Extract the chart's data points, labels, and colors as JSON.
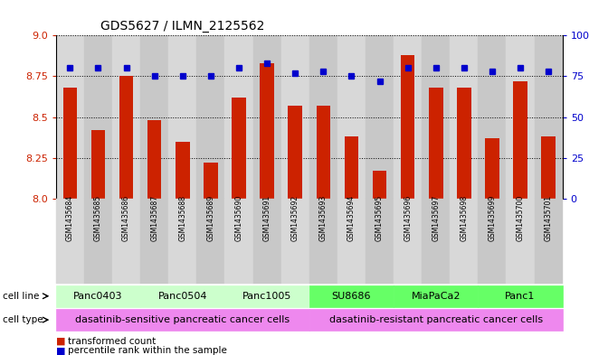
{
  "title": "GDS5627 / ILMN_2125562",
  "samples": [
    "GSM1435684",
    "GSM1435685",
    "GSM1435686",
    "GSM1435687",
    "GSM1435688",
    "GSM1435689",
    "GSM1435690",
    "GSM1435691",
    "GSM1435692",
    "GSM1435693",
    "GSM1435694",
    "GSM1435695",
    "GSM1435696",
    "GSM1435697",
    "GSM1435698",
    "GSM1435699",
    "GSM1435700",
    "GSM1435701"
  ],
  "transformed_counts": [
    8.68,
    8.42,
    8.75,
    8.48,
    8.35,
    8.22,
    8.62,
    8.83,
    8.57,
    8.57,
    8.38,
    8.17,
    8.88,
    8.68,
    8.68,
    8.37,
    8.72,
    8.38
  ],
  "percentile_ranks": [
    80,
    80,
    80,
    75,
    75,
    75,
    80,
    83,
    77,
    78,
    75,
    72,
    80,
    80,
    80,
    78,
    80,
    78
  ],
  "cell_lines": [
    {
      "name": "Panc0403",
      "start": 0,
      "end": 3,
      "color": "#ccffcc"
    },
    {
      "name": "Panc0504",
      "start": 3,
      "end": 6,
      "color": "#ccffcc"
    },
    {
      "name": "Panc1005",
      "start": 6,
      "end": 9,
      "color": "#ccffcc"
    },
    {
      "name": "SU8686",
      "start": 9,
      "end": 12,
      "color": "#66ff66"
    },
    {
      "name": "MiaPaCa2",
      "start": 12,
      "end": 15,
      "color": "#66ff66"
    },
    {
      "name": "Panc1",
      "start": 15,
      "end": 18,
      "color": "#66ff66"
    }
  ],
  "cell_types": [
    {
      "name": "dasatinib-sensitive pancreatic cancer cells",
      "start": 0,
      "end": 9,
      "color": "#ee88ee"
    },
    {
      "name": "dasatinib-resistant pancreatic cancer cells",
      "start": 9,
      "end": 18,
      "color": "#ee88ee"
    }
  ],
  "ylim_left": [
    8.0,
    9.0
  ],
  "yticks_left": [
    8.0,
    8.25,
    8.5,
    8.75,
    9.0
  ],
  "ylim_right": [
    0,
    100
  ],
  "yticks_right": [
    0,
    25,
    50,
    75,
    100
  ],
  "bar_color": "#cc2200",
  "dot_color": "#0000cc",
  "bar_width": 0.5,
  "sample_col_color_even": "#d8d8d8",
  "sample_col_color_odd": "#c8c8c8",
  "legend_items": [
    {
      "label": "transformed count",
      "color": "#cc2200"
    },
    {
      "label": "percentile rank within the sample",
      "color": "#0000cc"
    }
  ]
}
